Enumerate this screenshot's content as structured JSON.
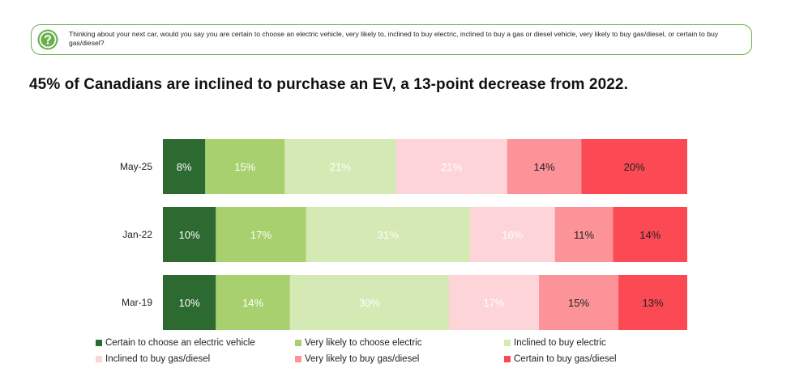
{
  "question": {
    "text": "Thinking about your next car, would you say you are certain to choose an electric vehicle, very likely to, inclined to buy electric, inclined to buy a gas or diesel vehicle, very likely to buy gas/diesel, or certain to buy gas/diesel?",
    "icon": "question-icon",
    "accent": "#6ab04c"
  },
  "headline": "45% of Canadians are inclined to purchase an EV, a 13-point decrease from 2022.",
  "chart_data": {
    "type": "bar",
    "orientation": "horizontal",
    "stacked": true,
    "normalized": true,
    "categories": [
      "May-25",
      "Jan-22",
      "Mar-19"
    ],
    "series": [
      {
        "name": "Certain to choose an electric vehicle",
        "color": "#2d6a31",
        "text_color": "#ffffff",
        "values": [
          8,
          10,
          10
        ],
        "labels": [
          "8%",
          "10%",
          "10%"
        ]
      },
      {
        "name": "Very likely to choose electric",
        "color": "#a9d06e",
        "text_color": "#ffffff",
        "values": [
          15,
          17,
          14
        ],
        "labels": [
          "15%",
          "17%",
          "14%"
        ]
      },
      {
        "name": "Inclined to buy electric",
        "color": "#d4e9b3",
        "text_color": "#ffffff",
        "values": [
          21,
          31,
          30
        ],
        "labels": [
          "21%",
          "31%",
          "30%"
        ]
      },
      {
        "name": "Inclined to buy gas/diesel",
        "color": "#fdd5d8",
        "text_color": "#ffffff",
        "values": [
          21,
          16,
          17
        ],
        "labels": [
          "21%",
          "16%",
          "17%"
        ]
      },
      {
        "name": "Very likely to buy gas/diesel",
        "color": "#fc9399",
        "text_color": "#222222",
        "values": [
          14,
          11,
          15
        ],
        "labels": [
          "14%",
          "11%",
          "15%"
        ]
      },
      {
        "name": "Certain to buy gas/diesel",
        "color": "#fb4a53",
        "text_color": "#222222",
        "values": [
          20,
          14,
          13
        ],
        "labels": [
          "20%",
          "14%",
          "13%"
        ]
      }
    ],
    "grid": false,
    "legend_position": "bottom"
  }
}
